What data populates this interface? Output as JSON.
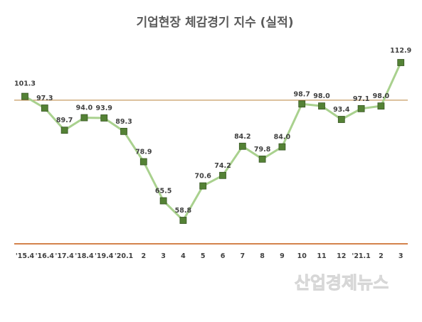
{
  "chart_data": {
    "type": "line",
    "title": "기업현장 체감경기 지수 (실적)",
    "categories": [
      "'15.4",
      "'16.4",
      "'17.4",
      "'18.4",
      "'19.4",
      "'20.1",
      "2",
      "3",
      "4",
      "5",
      "6",
      "7",
      "8",
      "9",
      "10",
      "11",
      "12",
      "'21.1",
      "2",
      "3"
    ],
    "values": [
      101.3,
      97.3,
      89.7,
      94.0,
      93.9,
      89.3,
      78.9,
      65.5,
      58.8,
      70.6,
      74.2,
      84.2,
      79.8,
      84.0,
      98.7,
      98.0,
      93.4,
      97.1,
      98.0,
      112.9
    ],
    "value_labels": [
      "101.3",
      "97.3",
      "89.7",
      "94.0",
      "93.9",
      "89.3",
      "78.9",
      "65.5",
      "58.8",
      "70.6",
      "74.2",
      "84.2",
      "79.8",
      "84.0",
      "98.7",
      "98.0",
      "93.4",
      "97.1",
      "98.0",
      "112.9"
    ],
    "reference_value": 100,
    "ylim": [
      50,
      115
    ],
    "xlabel": "",
    "ylabel": "",
    "grid": false,
    "legend": "none",
    "colors": {
      "line": "#a9d18e",
      "marker_fill": "#548235",
      "marker_stroke": "#375623",
      "reference_line": "#c09050",
      "axis_line": "#c55a11",
      "text": "#404040",
      "title": "#5a5a5a"
    }
  },
  "watermark": "산업경제뉴스"
}
